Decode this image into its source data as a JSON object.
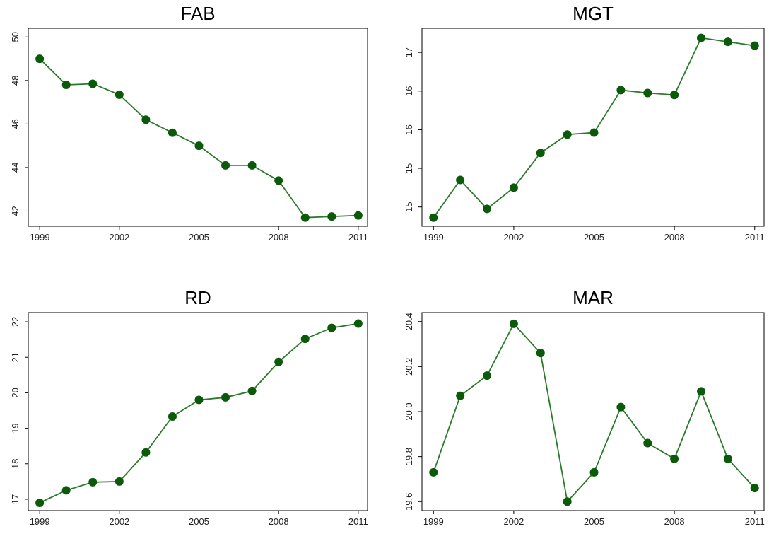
{
  "chart_data": [
    {
      "type": "line",
      "title": "FAB",
      "x": [
        1999,
        2000,
        2001,
        2002,
        2003,
        2004,
        2005,
        2006,
        2007,
        2008,
        2009,
        2010,
        2011
      ],
      "values": [
        49.0,
        47.8,
        47.85,
        47.35,
        46.2,
        45.6,
        45.0,
        44.1,
        44.1,
        43.4,
        41.7,
        41.75,
        41.8
      ],
      "color": "#2a7a2a",
      "xlim": [
        1998.57,
        2011.35
      ],
      "xticks": [
        1999,
        2002,
        2005,
        2008,
        2011
      ],
      "ylim": [
        41.3,
        50.4
      ],
      "yticks": [
        42,
        44,
        46,
        48,
        50
      ]
    },
    {
      "type": "line",
      "title": "MGT",
      "x": [
        1999,
        2000,
        2001,
        2002,
        2003,
        2004,
        2005,
        2006,
        2007,
        2008,
        2009,
        2010,
        2011
      ],
      "values": [
        14.89,
        15.28,
        14.98,
        15.2,
        15.56,
        15.75,
        15.77,
        16.21,
        16.18,
        16.16,
        16.75,
        16.71,
        16.67
      ],
      "color": "#2a7a2a",
      "xlim": [
        1998.57,
        2011.35
      ],
      "xticks": [
        1999,
        2002,
        2005,
        2008,
        2011
      ],
      "ylim": [
        14.8,
        16.85
      ],
      "yticks": [
        {
          "value": 15.0,
          "label": "15"
        },
        {
          "value": 15.4,
          "label": "15"
        },
        {
          "value": 15.8,
          "label": "16"
        },
        {
          "value": 16.2,
          "label": "16"
        },
        {
          "value": 16.6,
          "label": "17"
        }
      ]
    },
    {
      "type": "line",
      "title": "RD",
      "x": [
        1999,
        2000,
        2001,
        2002,
        2003,
        2004,
        2005,
        2006,
        2007,
        2008,
        2009,
        2010,
        2011
      ],
      "values": [
        16.9,
        17.25,
        17.48,
        17.5,
        18.32,
        19.33,
        19.8,
        19.87,
        20.05,
        20.87,
        21.52,
        21.83,
        21.95
      ],
      "color": "#2a7a2a",
      "xlim": [
        1998.57,
        2011.35
      ],
      "xticks": [
        1999,
        2002,
        2005,
        2008,
        2011
      ],
      "ylim": [
        16.68,
        22.26
      ],
      "yticks": [
        17,
        18,
        19,
        20,
        21,
        22
      ]
    },
    {
      "type": "line",
      "title": "MAR",
      "x": [
        1999,
        2000,
        2001,
        2002,
        2003,
        2004,
        2005,
        2006,
        2007,
        2008,
        2009,
        2010,
        2011
      ],
      "values": [
        19.73,
        20.07,
        20.16,
        20.39,
        20.26,
        19.6,
        19.73,
        20.02,
        19.86,
        19.79,
        20.09,
        19.79,
        19.66
      ],
      "color": "#2a7a2a",
      "xlim": [
        1998.57,
        2011.35
      ],
      "xticks": [
        1999,
        2002,
        2005,
        2008,
        2011
      ],
      "ylim": [
        19.56,
        20.44
      ],
      "yticks": [
        19.6,
        19.8,
        {
          "value": 20.0,
          "label": "20.0"
        },
        20.2,
        20.4
      ]
    }
  ]
}
